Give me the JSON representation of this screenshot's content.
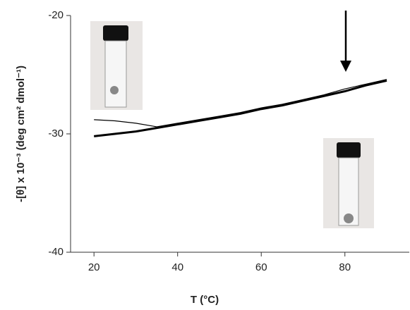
{
  "chart_data": {
    "type": "line",
    "xlabel": "T (°C)",
    "ylabel": "-[θ] x 10⁻³ (deg cm² dmol⁻¹)",
    "x": [
      20,
      25,
      30,
      35,
      40,
      45,
      50,
      55,
      60,
      65,
      70,
      75,
      80,
      85,
      90
    ],
    "series": [
      {
        "color": "#000000",
        "width": 3,
        "values": [
          -30.2,
          -30.0,
          -29.8,
          -29.5,
          -29.2,
          -28.9,
          -28.6,
          -28.3,
          -27.9,
          -27.6,
          -27.2,
          -26.8,
          -26.4,
          -25.9,
          -25.5
        ]
      },
      {
        "color": "#000000",
        "width": 1.2,
        "values": [
          -28.8,
          -28.9,
          -29.1,
          -29.4,
          -29.1,
          -28.8,
          -28.5,
          -28.2,
          -27.8,
          -27.5,
          -27.1,
          -26.7,
          -26.2,
          -25.8,
          -25.4
        ]
      }
    ],
    "xlim": [
      14.4,
      95.4
    ],
    "ylim": [
      -40,
      -20
    ],
    "xticks": [
      20,
      40,
      60,
      80
    ],
    "yticks": [
      -40,
      -30,
      -20
    ]
  }
}
